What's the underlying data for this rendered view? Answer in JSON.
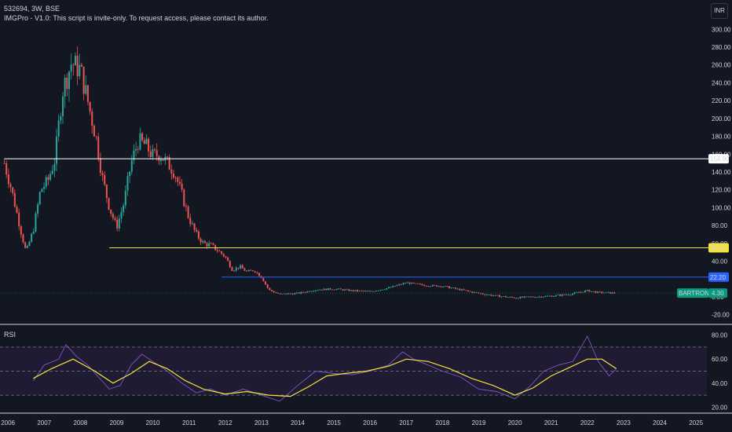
{
  "header": {
    "symbol_line": "532694, 3W, BSE",
    "indicator_line": "IMGPro - V1.0: This script is invite-only. To request access, please contact its author."
  },
  "currency_button": "INR",
  "rsi_label": "RSI",
  "colors": {
    "background": "#131722",
    "up_candle": "#26a69a",
    "down_candle": "#ef5350",
    "level_154": "#ffffff",
    "level_55": "#f4e23b",
    "level_22": "#2962ff",
    "price_badge": "#089981",
    "rsi_line": "#7e57c2",
    "rsi_ma": "#f4e23b",
    "rsi_band_fill": "#1e1b33"
  },
  "chart_data": [
    {
      "type": "candlestick",
      "title": "532694, 3W, BSE",
      "y_axis_ticks": [
        "300.00",
        "280.00",
        "260.00",
        "240.00",
        "220.00",
        "200.00",
        "180.00",
        "160.00",
        "140.00",
        "120.00",
        "100.00",
        "80.00",
        "60.00",
        "40.00",
        "20.00",
        "0.00",
        "-20.00"
      ],
      "x_axis_ticks": [
        "2006",
        "2007",
        "2008",
        "2009",
        "2010",
        "2011",
        "2012",
        "2013",
        "2014",
        "2015",
        "2016",
        "2017",
        "2018",
        "2019",
        "2020",
        "2021",
        "2022",
        "2023",
        "2024",
        "2025"
      ],
      "ylim": [
        -22,
        302
      ],
      "price_path": [
        {
          "x": 2005.9,
          "y": 150
        },
        {
          "x": 2006.1,
          "y": 120
        },
        {
          "x": 2006.35,
          "y": 75
        },
        {
          "x": 2006.5,
          "y": 50
        },
        {
          "x": 2006.7,
          "y": 75
        },
        {
          "x": 2006.9,
          "y": 120
        },
        {
          "x": 2007.1,
          "y": 130
        },
        {
          "x": 2007.3,
          "y": 155
        },
        {
          "x": 2007.5,
          "y": 230
        },
        {
          "x": 2007.75,
          "y": 262
        },
        {
          "x": 2008.0,
          "y": 255
        },
        {
          "x": 2008.2,
          "y": 220
        },
        {
          "x": 2008.45,
          "y": 175
        },
        {
          "x": 2008.6,
          "y": 135
        },
        {
          "x": 2008.8,
          "y": 100
        },
        {
          "x": 2009.0,
          "y": 78
        },
        {
          "x": 2009.2,
          "y": 105
        },
        {
          "x": 2009.4,
          "y": 150
        },
        {
          "x": 2009.6,
          "y": 175
        },
        {
          "x": 2009.8,
          "y": 170
        },
        {
          "x": 2010.0,
          "y": 158
        },
        {
          "x": 2010.2,
          "y": 160
        },
        {
          "x": 2010.4,
          "y": 150
        },
        {
          "x": 2010.6,
          "y": 140
        },
        {
          "x": 2010.8,
          "y": 115
        },
        {
          "x": 2011.0,
          "y": 88
        },
        {
          "x": 2011.2,
          "y": 70
        },
        {
          "x": 2011.4,
          "y": 60
        },
        {
          "x": 2011.6,
          "y": 58
        },
        {
          "x": 2011.8,
          "y": 52
        },
        {
          "x": 2012.0,
          "y": 45
        },
        {
          "x": 2012.2,
          "y": 30
        },
        {
          "x": 2012.4,
          "y": 34
        },
        {
          "x": 2012.6,
          "y": 28
        },
        {
          "x": 2012.8,
          "y": 30
        },
        {
          "x": 2013.0,
          "y": 22
        },
        {
          "x": 2013.2,
          "y": 8
        },
        {
          "x": 2013.5,
          "y": 3
        },
        {
          "x": 2014.0,
          "y": 4
        },
        {
          "x": 2014.5,
          "y": 8
        },
        {
          "x": 2015.0,
          "y": 9
        },
        {
          "x": 2015.5,
          "y": 7
        },
        {
          "x": 2016.0,
          "y": 6
        },
        {
          "x": 2016.5,
          "y": 10
        },
        {
          "x": 2017.0,
          "y": 16
        },
        {
          "x": 2017.5,
          "y": 13
        },
        {
          "x": 2018.0,
          "y": 12
        },
        {
          "x": 2018.5,
          "y": 8
        },
        {
          "x": 2019.0,
          "y": 4
        },
        {
          "x": 2019.5,
          "y": 1
        },
        {
          "x": 2020.0,
          "y": -1
        },
        {
          "x": 2020.5,
          "y": 0
        },
        {
          "x": 2021.0,
          "y": 1
        },
        {
          "x": 2021.5,
          "y": 3
        },
        {
          "x": 2022.0,
          "y": 7
        },
        {
          "x": 2022.3,
          "y": 5
        },
        {
          "x": 2022.8,
          "y": 4.3
        }
      ],
      "horizontal_levels": [
        {
          "value": 154.9,
          "label": "154.90",
          "color": "#ffffff",
          "start_x": 2005.9
        },
        {
          "value": 55.05,
          "label": "55.05",
          "color": "#f4e23b",
          "start_x": 2008.8
        },
        {
          "value": 22.2,
          "label": "22.20",
          "color": "#2962ff",
          "start_x": 2011.9
        }
      ],
      "last_price": {
        "label": "BARTRONICS",
        "value": "4.30",
        "numeric": 4.3,
        "color": "#089981"
      }
    },
    {
      "type": "line",
      "title": "RSI",
      "y_axis_ticks": [
        "80.00",
        "60.00",
        "40.00",
        "20.00"
      ],
      "ylim": [
        17,
        81
      ],
      "bands": [
        70,
        50,
        30
      ],
      "series": [
        {
          "color": "#7e57c2",
          "points": [
            {
              "x": 2006.7,
              "y": 42
            },
            {
              "x": 2007.0,
              "y": 55
            },
            {
              "x": 2007.4,
              "y": 60
            },
            {
              "x": 2007.6,
              "y": 72
            },
            {
              "x": 2007.9,
              "y": 62
            },
            {
              "x": 2008.2,
              "y": 55
            },
            {
              "x": 2008.5,
              "y": 45
            },
            {
              "x": 2008.8,
              "y": 35
            },
            {
              "x": 2009.1,
              "y": 38
            },
            {
              "x": 2009.4,
              "y": 55
            },
            {
              "x": 2009.7,
              "y": 64
            },
            {
              "x": 2010.0,
              "y": 58
            },
            {
              "x": 2010.4,
              "y": 50
            },
            {
              "x": 2010.8,
              "y": 40
            },
            {
              "x": 2011.2,
              "y": 32
            },
            {
              "x": 2011.6,
              "y": 35
            },
            {
              "x": 2012.0,
              "y": 30
            },
            {
              "x": 2012.5,
              "y": 35
            },
            {
              "x": 2013.0,
              "y": 30
            },
            {
              "x": 2013.5,
              "y": 25
            },
            {
              "x": 2014.0,
              "y": 38
            },
            {
              "x": 2014.5,
              "y": 50
            },
            {
              "x": 2015.0,
              "y": 48
            },
            {
              "x": 2015.5,
              "y": 47
            },
            {
              "x": 2016.0,
              "y": 50
            },
            {
              "x": 2016.5,
              "y": 55
            },
            {
              "x": 2016.9,
              "y": 66
            },
            {
              "x": 2017.2,
              "y": 60
            },
            {
              "x": 2017.6,
              "y": 55
            },
            {
              "x": 2018.0,
              "y": 50
            },
            {
              "x": 2018.5,
              "y": 45
            },
            {
              "x": 2019.0,
              "y": 35
            },
            {
              "x": 2019.5,
              "y": 33
            },
            {
              "x": 2020.0,
              "y": 27
            },
            {
              "x": 2020.4,
              "y": 37
            },
            {
              "x": 2020.8,
              "y": 50
            },
            {
              "x": 2021.2,
              "y": 55
            },
            {
              "x": 2021.6,
              "y": 58
            },
            {
              "x": 2022.0,
              "y": 79
            },
            {
              "x": 2022.3,
              "y": 58
            },
            {
              "x": 2022.6,
              "y": 46
            },
            {
              "x": 2022.8,
              "y": 52
            }
          ]
        },
        {
          "color": "#f4e23b",
          "points": [
            {
              "x": 2006.7,
              "y": 44
            },
            {
              "x": 2007.2,
              "y": 52
            },
            {
              "x": 2007.8,
              "y": 60
            },
            {
              "x": 2008.4,
              "y": 50
            },
            {
              "x": 2008.9,
              "y": 40
            },
            {
              "x": 2009.4,
              "y": 48
            },
            {
              "x": 2009.9,
              "y": 58
            },
            {
              "x": 2010.4,
              "y": 52
            },
            {
              "x": 2010.9,
              "y": 42
            },
            {
              "x": 2011.4,
              "y": 35
            },
            {
              "x": 2012.0,
              "y": 31
            },
            {
              "x": 2012.6,
              "y": 33
            },
            {
              "x": 2013.2,
              "y": 30
            },
            {
              "x": 2013.8,
              "y": 29
            },
            {
              "x": 2014.3,
              "y": 37
            },
            {
              "x": 2014.8,
              "y": 46
            },
            {
              "x": 2015.3,
              "y": 48
            },
            {
              "x": 2015.9,
              "y": 50
            },
            {
              "x": 2016.5,
              "y": 54
            },
            {
              "x": 2017.0,
              "y": 60
            },
            {
              "x": 2017.6,
              "y": 58
            },
            {
              "x": 2018.2,
              "y": 52
            },
            {
              "x": 2018.8,
              "y": 44
            },
            {
              "x": 2019.4,
              "y": 38
            },
            {
              "x": 2020.0,
              "y": 30
            },
            {
              "x": 2020.5,
              "y": 36
            },
            {
              "x": 2021.0,
              "y": 46
            },
            {
              "x": 2021.5,
              "y": 53
            },
            {
              "x": 2022.0,
              "y": 60
            },
            {
              "x": 2022.4,
              "y": 60
            },
            {
              "x": 2022.8,
              "y": 52
            }
          ]
        }
      ]
    }
  ]
}
